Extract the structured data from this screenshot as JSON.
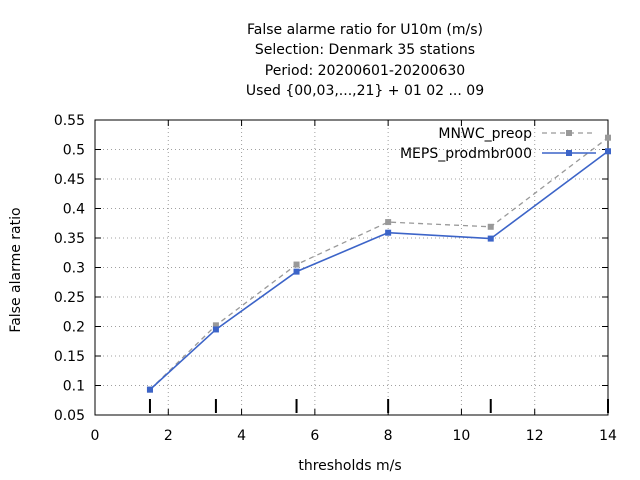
{
  "chart_data": {
    "type": "line",
    "title_lines": [
      "False alarme ratio  for U10m (m/s)",
      "Selection: Denmark     35 stations",
      "Period: 20200601-20200630",
      "Used {00,03,...,21} + 01 02 ... 09"
    ],
    "xlabel": "thresholds m/s",
    "ylabel": "False alarme ratio",
    "xlim": [
      0,
      14
    ],
    "ylim": [
      0.05,
      0.55
    ],
    "xticks": [
      0,
      2,
      4,
      6,
      8,
      10,
      12,
      14
    ],
    "xtick_labels": [
      "0",
      "2",
      "4",
      "6",
      "8",
      "10",
      "12",
      "14"
    ],
    "yticks": [
      0.05,
      0.1,
      0.15,
      0.2,
      0.25,
      0.3,
      0.35,
      0.4,
      0.45,
      0.5,
      0.55
    ],
    "ytick_labels": [
      "0.05",
      "0.1",
      "0.15",
      "0.2",
      "0.25",
      "0.3",
      "0.35",
      "0.4",
      "0.45",
      "0.5",
      "0.55"
    ],
    "grid": true,
    "legend_position": "top-right",
    "series": [
      {
        "name": "MNWC_preop",
        "color": "#999999",
        "dashed": true,
        "x": [
          1.5,
          3.3,
          5.5,
          8.0,
          10.8,
          14.0
        ],
        "y": [
          0.093,
          0.202,
          0.305,
          0.377,
          0.369,
          0.52
        ]
      },
      {
        "name": "MEPS_prodmbr000",
        "color": "#3c64c8",
        "dashed": false,
        "x": [
          1.5,
          3.3,
          5.5,
          8.0,
          10.8,
          14.0
        ],
        "y": [
          0.093,
          0.195,
          0.293,
          0.359,
          0.349,
          0.497
        ]
      }
    ],
    "threshold_markers_x": [
      1.5,
      3.3,
      5.5,
      8.0,
      10.8,
      14.0
    ]
  }
}
